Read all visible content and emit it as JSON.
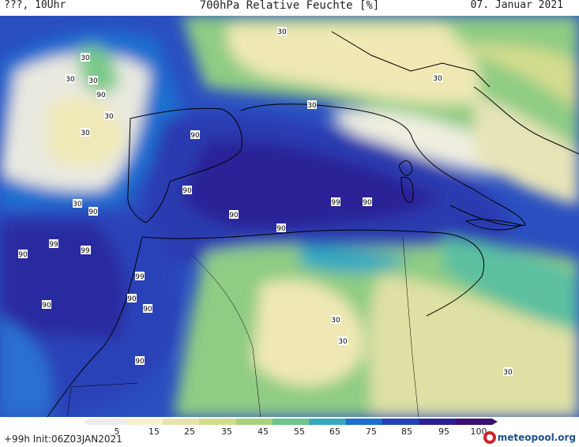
{
  "header": {
    "left": "???, 10Uhr",
    "title": "700hPa Relative Feuchte [%]",
    "date": "07. Januar 2021"
  },
  "footer": {
    "init": "+99h Init:06Z03JAN2021",
    "logo": "meteopool.org"
  },
  "legend": {
    "ticks": [
      "5",
      "15",
      "25",
      "35",
      "45",
      "55",
      "65",
      "75",
      "85",
      "95",
      "100"
    ],
    "colors": [
      "#ececec",
      "#f6f2cf",
      "#e8e3ad",
      "#d3dc8d",
      "#a9d27f",
      "#6ec48b",
      "#35a8bf",
      "#1b6fd0",
      "#2440b8",
      "#2c2196",
      "#3a1074"
    ]
  },
  "contour_labels": [
    {
      "text": "30"
    },
    {
      "text": "30"
    },
    {
      "text": "30"
    },
    {
      "text": "90"
    },
    {
      "text": "30"
    },
    {
      "text": "30"
    },
    {
      "text": "30"
    },
    {
      "text": "30"
    },
    {
      "text": "30"
    },
    {
      "text": "90"
    },
    {
      "text": "90"
    },
    {
      "text": "30"
    },
    {
      "text": "90"
    },
    {
      "text": "90"
    },
    {
      "text": "90"
    },
    {
      "text": "99"
    },
    {
      "text": "90"
    },
    {
      "text": "99"
    },
    {
      "text": "90"
    },
    {
      "text": "99"
    },
    {
      "text": "90"
    },
    {
      "text": "99"
    },
    {
      "text": "90"
    },
    {
      "text": "90"
    },
    {
      "text": "90"
    },
    {
      "text": "30"
    },
    {
      "text": "30"
    },
    {
      "text": "90"
    },
    {
      "text": "30"
    }
  ]
}
